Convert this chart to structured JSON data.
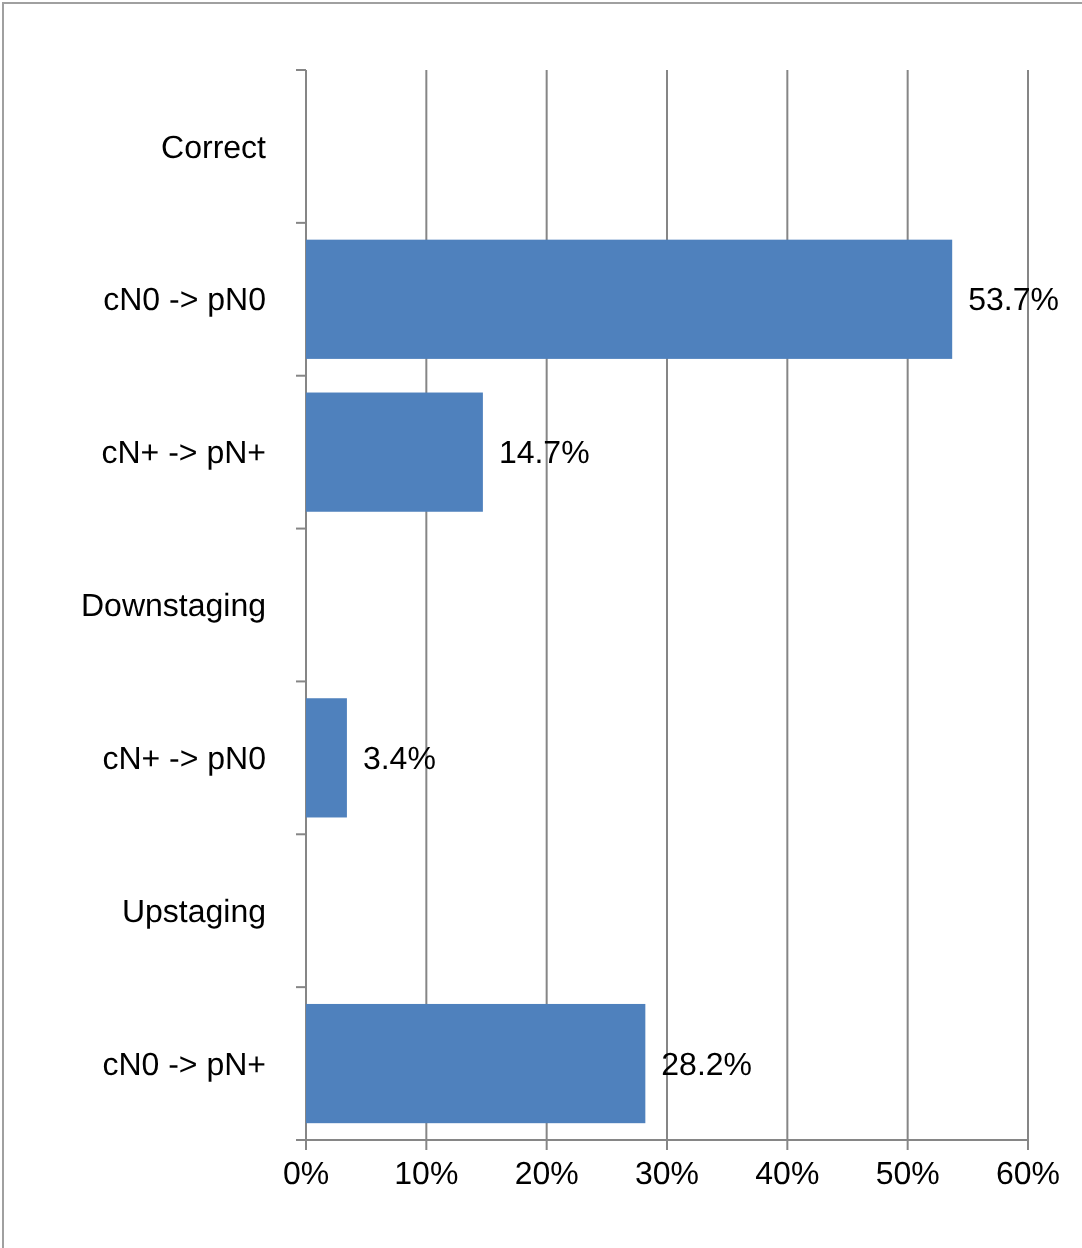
{
  "chart_data": {
    "type": "bar",
    "orientation": "horizontal",
    "categories": [
      "Correct",
      "cN0 -> pN0",
      "cN+ -> pN+",
      "Downstaging",
      "cN+ -> pN0",
      "Upstaging",
      "cN0 -> pN+"
    ],
    "values": [
      null,
      53.7,
      14.7,
      null,
      3.4,
      null,
      28.2
    ],
    "value_labels": [
      null,
      "53.7%",
      "14.7%",
      null,
      "3.4%",
      null,
      "28.2%"
    ],
    "color": "#4f81bd",
    "xlim": [
      0,
      60
    ],
    "xticks": [
      {
        "value": 0,
        "label": "0%"
      },
      {
        "value": 10,
        "label": "10%"
      },
      {
        "value": 20,
        "label": "20%"
      },
      {
        "value": 30,
        "label": "30%"
      },
      {
        "value": 40,
        "label": "40%"
      },
      {
        "value": 50,
        "label": "50%"
      },
      {
        "value": 60,
        "label": "60%"
      }
    ],
    "grid": "x"
  }
}
